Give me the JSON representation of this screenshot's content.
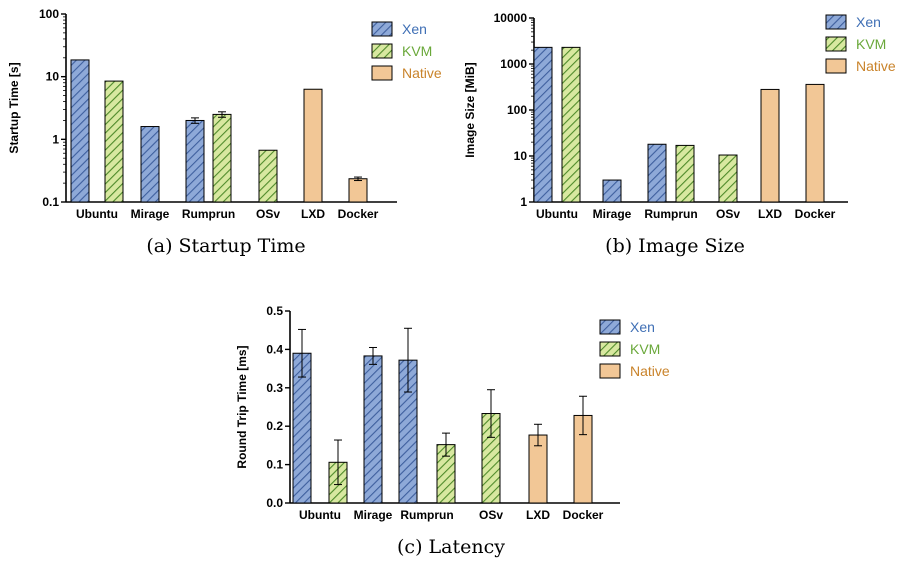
{
  "legend": [
    {
      "name": "Xen",
      "color": "#3f6fb5"
    },
    {
      "name": "KVM",
      "color": "#6aa83a"
    },
    {
      "name": "Native",
      "color": "#c9832a"
    }
  ],
  "colors": {
    "xen_fill": "#8ea9d8",
    "kvm_fill": "#d8e8a0",
    "native_fill": "#f2c796",
    "xen_hatch": "#3e5f9e",
    "kvm_hatch": "#4e8a2a"
  },
  "captions": {
    "a": "(a) Startup Time",
    "b": "(b) Image Size",
    "c": "(c) Latency"
  },
  "chart_data": [
    {
      "type": "bar",
      "id": "a",
      "ylabel": "Startup Time [s]",
      "scale": "log",
      "ylim": [
        0.1,
        100
      ],
      "yticks": [
        0.1,
        1,
        10,
        100
      ],
      "ytick_labels": [
        "0.1",
        "1",
        "10",
        "100"
      ],
      "categories": [
        "Ubuntu",
        "Mirage",
        "Rumprun",
        "OSv",
        "LXD",
        "Docker"
      ],
      "series": [
        {
          "name": "Xen",
          "values": [
            18.5,
            1.6,
            2.0,
            null,
            null,
            null
          ],
          "errors": [
            0,
            0,
            0.2,
            null,
            null,
            null
          ]
        },
        {
          "name": "KVM",
          "values": [
            8.5,
            null,
            2.5,
            0.67,
            null,
            null
          ],
          "errors": [
            0,
            null,
            0.25,
            0,
            null,
            null
          ]
        },
        {
          "name": "Native",
          "values": [
            null,
            null,
            null,
            null,
            6.3,
            0.235
          ],
          "errors": [
            null,
            null,
            null,
            null,
            0,
            0.015
          ]
        }
      ]
    },
    {
      "type": "bar",
      "id": "b",
      "ylabel": "Image Size [MiB]",
      "scale": "log",
      "ylim": [
        1,
        10000
      ],
      "yticks": [
        1,
        10,
        100,
        1000,
        10000
      ],
      "ytick_labels": [
        "1",
        "10",
        "100",
        "1000",
        "10000"
      ],
      "categories": [
        "Ubuntu",
        "Mirage",
        "Rumprun",
        "OSv",
        "LXD",
        "Docker"
      ],
      "series": [
        {
          "name": "Xen",
          "values": [
            2300,
            3,
            18,
            null,
            null,
            null
          ]
        },
        {
          "name": "KVM",
          "values": [
            2300,
            null,
            17,
            10.5,
            null,
            null
          ]
        },
        {
          "name": "Native",
          "values": [
            null,
            null,
            null,
            null,
            280,
            360
          ]
        }
      ]
    },
    {
      "type": "bar",
      "id": "c",
      "ylabel": "Round Trip Time [ms]",
      "scale": "linear",
      "ylim": [
        0,
        0.5
      ],
      "yticks": [
        0,
        0.1,
        0.2,
        0.3,
        0.4,
        0.5
      ],
      "ytick_labels": [
        "0.0",
        "0.1",
        "0.2",
        "0.3",
        "0.4",
        "0.5"
      ],
      "categories": [
        "Ubuntu",
        "Mirage",
        "Rumprun",
        "OSv",
        "LXD",
        "Docker"
      ],
      "series": [
        {
          "name": "Xen",
          "values": [
            0.39,
            0.383,
            0.372,
            null,
            null,
            null
          ],
          "errors": [
            0.062,
            0.022,
            0.083,
            null,
            null,
            null
          ]
        },
        {
          "name": "KVM",
          "values": [
            0.106,
            null,
            0.152,
            0.233,
            null,
            null
          ],
          "errors": [
            0.058,
            null,
            0.03,
            0.062,
            null,
            null
          ]
        },
        {
          "name": "Native",
          "values": [
            null,
            null,
            null,
            null,
            0.177,
            0.228
          ],
          "errors": [
            null,
            null,
            null,
            null,
            0.028,
            0.05
          ]
        }
      ]
    }
  ]
}
